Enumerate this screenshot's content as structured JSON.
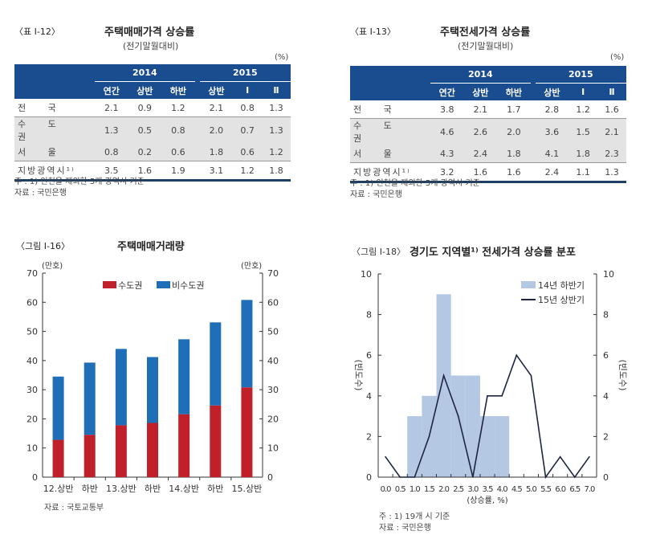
{
  "table12": {
    "label": "〈표 Ⅰ-12〉",
    "title": "주택매매가격 상승률",
    "subtitle": "(전기말월대비)",
    "unit": "(%)",
    "years": [
      "2014",
      "2015"
    ],
    "cols": [
      "연간",
      "상반",
      "하반",
      "상반",
      "Ⅰ",
      "Ⅱ"
    ],
    "rows": [
      {
        "name": "전 국",
        "values": [
          "2.1",
          "0.9",
          "1.2",
          "2.1",
          "0.8",
          "1.3"
        ]
      },
      {
        "name": "수 도 권",
        "values": [
          "1.3",
          "0.5",
          "0.8",
          "2.0",
          "0.7",
          "1.3"
        ]
      },
      {
        "name": "서 울",
        "values": [
          "0.8",
          "0.2",
          "0.6",
          "1.8",
          "0.6",
          "1.2"
        ]
      },
      {
        "name": "지방광역시¹⁾",
        "values": [
          "3.5",
          "1.6",
          "1.9",
          "3.1",
          "1.2",
          "1.8"
        ]
      }
    ],
    "note": "주 : 1) 인천을 제외한 5개 광역시 기준",
    "source": "자료 : 국민은행"
  },
  "table13": {
    "label": "〈표 Ⅰ-13〉",
    "title": "주택전세가격 상승률",
    "subtitle": "(전기말월대비)",
    "unit": "(%)",
    "years": [
      "2014",
      "2015"
    ],
    "cols": [
      "연간",
      "상반",
      "하반",
      "상반",
      "Ⅰ",
      "Ⅱ"
    ],
    "rows": [
      {
        "name": "전 국",
        "values": [
          "3.8",
          "2.1",
          "1.7",
          "2.8",
          "1.2",
          "1.6"
        ]
      },
      {
        "name": "수 도 권",
        "values": [
          "4.6",
          "2.6",
          "2.0",
          "3.6",
          "1.5",
          "2.1"
        ]
      },
      {
        "name": "서 울",
        "values": [
          "4.3",
          "2.4",
          "1.8",
          "4.1",
          "1.8",
          "2.3"
        ]
      },
      {
        "name": "지방광역시¹⁾",
        "values": [
          "3.2",
          "1.6",
          "1.6",
          "2.4",
          "1.1",
          "1.3"
        ]
      }
    ],
    "note": "주 : 1) 인천을 제외한 5개 광역시 기준",
    "source": "자료 : 국민은행"
  },
  "chart_data": [
    {
      "type": "bar",
      "stacked": true,
      "label": "〈그림 Ⅰ-16〉",
      "title": "주택매매거래량",
      "ylabel_left": "(만호)",
      "ylabel_right": "(만호)",
      "ylim": [
        0,
        70
      ],
      "yticks": [
        0,
        10,
        20,
        30,
        40,
        50,
        60,
        70
      ],
      "legend": "top-center",
      "categories": [
        "12.상반",
        "하반",
        "13.상반",
        "하반",
        "14.상반",
        "하반",
        "15.상반"
      ],
      "series": [
        {
          "name": "수도권",
          "color": "#c0202a",
          "values": [
            12.8,
            14.5,
            17.8,
            18.6,
            21.6,
            24.6,
            30.8
          ]
        },
        {
          "name": "비수도권",
          "color": "#1f6fb8",
          "values": [
            21.7,
            24.8,
            26.2,
            22.6,
            25.7,
            28.5,
            30.0
          ]
        }
      ],
      "source": "자료 : 국토교통부"
    },
    {
      "type": "bar+line",
      "label": "〈그림 Ⅰ-18〉",
      "title": "경기도 지역별¹⁾ 전세가격 상승률 분포",
      "xlabel": "(상승률, %)",
      "ylabel_left": "(빈도수)",
      "ylabel_right": "(빈도수)",
      "ylim": [
        0,
        10
      ],
      "yticks": [
        0,
        2,
        4,
        6,
        8,
        10
      ],
      "legend": "top-right",
      "xticks": [
        "0.0",
        "0.5",
        "1.0",
        "1.5",
        "2.0",
        "2.5",
        "3.0",
        "3.5",
        "4.0",
        "4.5",
        "5.0",
        "5.5",
        "6.0",
        "6.5",
        "7.0"
      ],
      "x": [
        0.0,
        0.5,
        1.0,
        1.5,
        2.0,
        2.5,
        3.0,
        3.5,
        4.0,
        4.5,
        5.0,
        5.5,
        6.0,
        6.5,
        7.0
      ],
      "series": [
        {
          "name": "14년 하반기",
          "type": "bar",
          "color": "#b4c7e3",
          "values": [
            0,
            0,
            3,
            4,
            9,
            5,
            5,
            3,
            3,
            0,
            0,
            0,
            0,
            0,
            0
          ]
        },
        {
          "name": "15년 상반기",
          "type": "line",
          "color": "#1d2540",
          "values": [
            1,
            0,
            0,
            2,
            5,
            3,
            0,
            4,
            4,
            6,
            5,
            0,
            1,
            0,
            1
          ]
        }
      ],
      "note": "주 : 1) 19개 시 기준",
      "source": "자료 : 국민은행"
    }
  ]
}
